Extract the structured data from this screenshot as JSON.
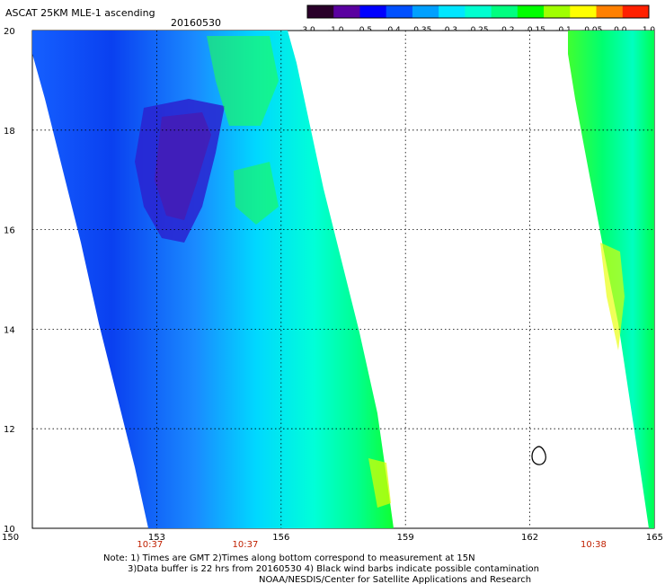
{
  "header": {
    "title": "ASCAT 25KM MLE-1 ascending",
    "date": "20160530"
  },
  "colorbar": {
    "labels": [
      "-3.0",
      "-1.0",
      "-0.5",
      "-0.4",
      "-0.35",
      "-0.3",
      "-0.25",
      "-0.2",
      "-0.15",
      "-0.1",
      "-0.05",
      "0.0",
      "1.0"
    ],
    "colors": [
      "#2a002a",
      "#5a00a0",
      "#0000ff",
      "#0050ff",
      "#00a0ff",
      "#00e6ff",
      "#00ffd0",
      "#00ff80",
      "#00ff00",
      "#a0ff00",
      "#ffff00",
      "#ff8000",
      "#ff2000"
    ]
  },
  "map": {
    "lat_labels": [
      "20",
      "18",
      "16",
      "14",
      "12",
      "10"
    ],
    "lon_labels": [
      "150",
      "153",
      "156",
      "159",
      "162",
      "165"
    ],
    "lat_range": [
      10,
      20
    ],
    "lon_range": [
      150,
      165
    ],
    "grid": true,
    "pass_times": [
      {
        "lon": 153,
        "label": "10:37"
      },
      {
        "lon": 155.3,
        "label": "10:37"
      },
      {
        "lon": 163.7,
        "label": "10:38"
      }
    ],
    "time_color": "#c02000"
  },
  "notes": {
    "line1": "Note: 1) Times are GMT 2)Times along bottom correspond to measurement at 15N",
    "line2": "3)Data buffer is 22 hrs from 20160530 4) Black wind barbs indicate possible contamination",
    "line3": "NOAA/NESDIS/Center for Satellite Applications and Research"
  }
}
